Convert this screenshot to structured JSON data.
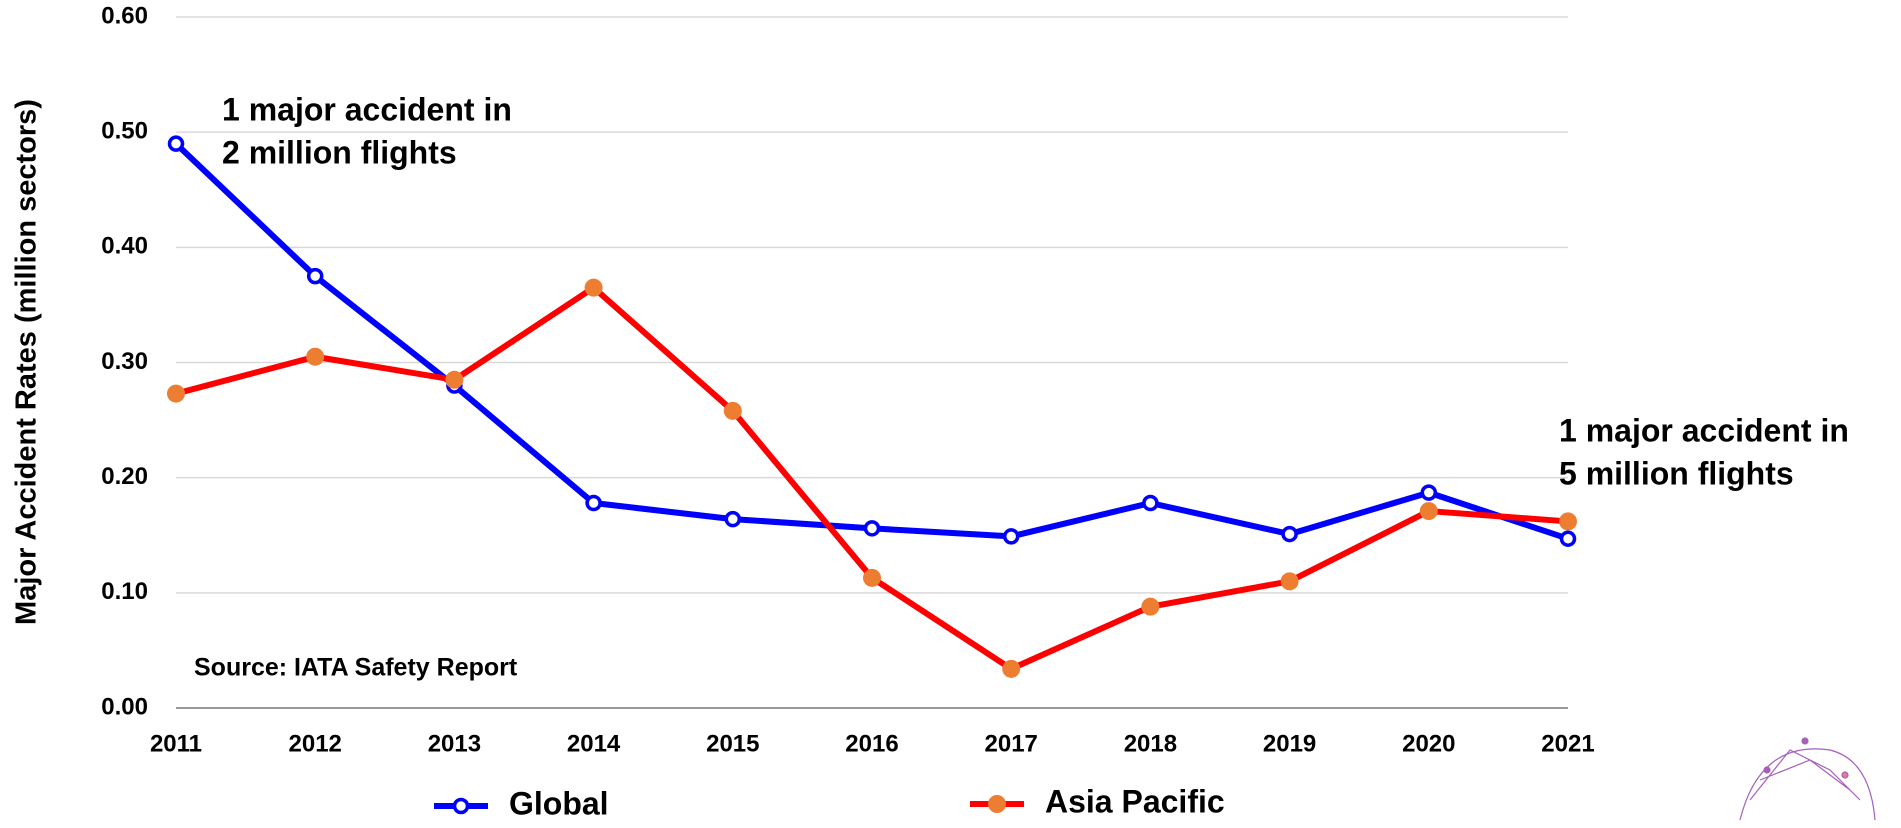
{
  "chart_data": {
    "type": "line",
    "y_label": "Major Accident Rates (million sectors)",
    "categories": [
      "2011",
      "2012",
      "2013",
      "2014",
      "2015",
      "2016",
      "2017",
      "2018",
      "2019",
      "2020",
      "2021"
    ],
    "series": [
      {
        "name": "Global",
        "color": "#0000ff",
        "marker_color": "#ffffff",
        "values": [
          0.49,
          0.375,
          0.28,
          0.178,
          0.164,
          0.156,
          0.149,
          0.178,
          0.151,
          0.187,
          0.147
        ]
      },
      {
        "name": "Asia Pacific",
        "color": "#ff0000",
        "marker_color": "#ed7d31",
        "values": [
          0.273,
          0.305,
          0.285,
          0.365,
          0.258,
          0.113,
          0.034,
          0.088,
          0.11,
          0.171,
          0.162
        ]
      }
    ],
    "ylim": [
      0,
      0.6
    ],
    "yticks": [
      {
        "value": 0,
        "label": "0.00"
      },
      {
        "value": 0.1,
        "label": "0.10"
      },
      {
        "value": 0.2,
        "label": "0.20"
      },
      {
        "value": 0.3,
        "label": "0.30"
      },
      {
        "value": 0.4,
        "label": "0.40"
      },
      {
        "value": 0.5,
        "label": "0.50"
      },
      {
        "value": 0.6,
        "label": "0.60"
      }
    ],
    "grid": true,
    "legend": "bottom",
    "annotations": [
      {
        "lines": [
          "1 major accident in",
          "2 million flights"
        ]
      },
      {
        "lines": [
          "1 major accident in",
          "5 million flights"
        ]
      },
      {
        "lines": [
          "Source: IATA Safety Report"
        ]
      }
    ]
  }
}
